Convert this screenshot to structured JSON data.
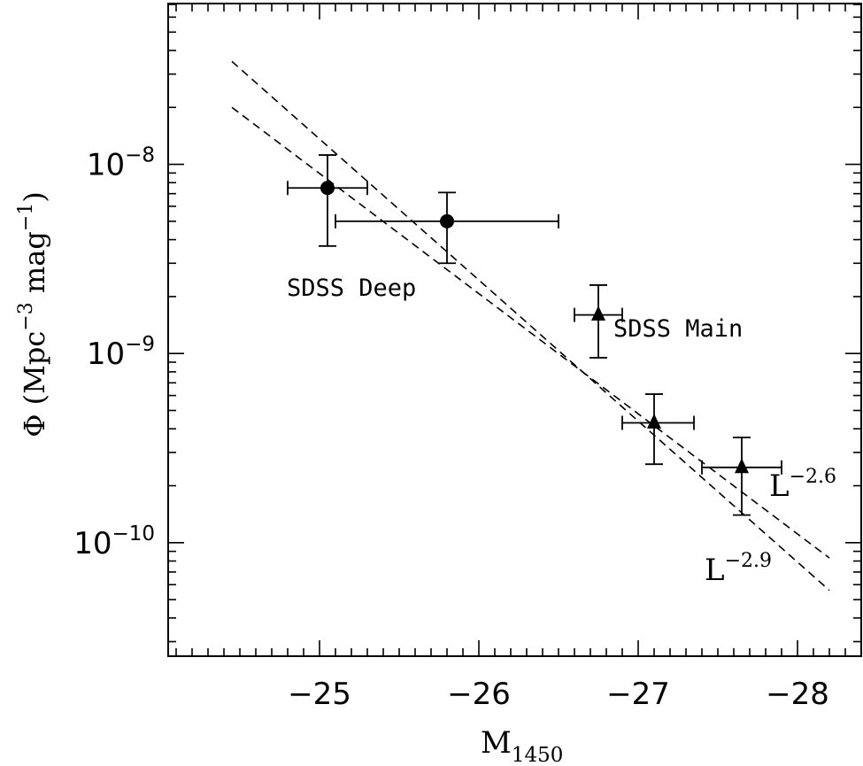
{
  "chart_data": {
    "type": "scatter",
    "xlabel": "M",
    "xlabel_sub": "1450",
    "ylabel": "Φ (Mpc⁻³ mag⁻¹)",
    "ylabel_parts": {
      "main": "Φ (Mpc",
      "exp1": "−3",
      "mid": " mag",
      "exp2": "−1",
      "end": ")"
    },
    "x_axis": {
      "reversed": true,
      "xlim": [
        -24.05,
        -28.4
      ],
      "ticks": [
        -25,
        -26,
        -27,
        -28
      ],
      "tick_labels": [
        "−25",
        "−26",
        "−27",
        "−28"
      ]
    },
    "y_axis": {
      "log": true,
      "ylim_log10": [
        -10.6,
        -7.15
      ],
      "ticks_log10": [
        -8,
        -9,
        -10
      ],
      "tick_labels": [
        {
          "base": "10",
          "exp": "−8"
        },
        {
          "base": "10",
          "exp": "−9"
        },
        {
          "base": "10",
          "exp": "−10"
        }
      ]
    },
    "series": [
      {
        "name": "SDSS Deep",
        "marker": "circle",
        "points": [
          {
            "x": -25.05,
            "y": 7.5e-09,
            "xerr": [
              0.25,
              0.25
            ],
            "yerr_low": 3.7e-09,
            "yerr_high": 1.12e-08
          },
          {
            "x": -25.8,
            "y": 5e-09,
            "xerr": [
              0.7,
              0.7
            ],
            "yerr_low": 3e-09,
            "yerr_high": 7.1e-09
          }
        ]
      },
      {
        "name": "SDSS Main",
        "marker": "triangle",
        "points": [
          {
            "x": -26.75,
            "y": 1.6e-09,
            "xerr": [
              0.15,
              0.15
            ],
            "yerr_low": 9.5e-10,
            "yerr_high": 2.3e-09
          },
          {
            "x": -27.1,
            "y": 4.3e-10,
            "xerr": [
              0.2,
              0.25
            ],
            "yerr_low": 2.6e-10,
            "yerr_high": 6.1e-10
          },
          {
            "x": -27.65,
            "y": 2.5e-10,
            "xerr": [
              0.25,
              0.25
            ],
            "yerr_low": 1.4e-10,
            "yerr_high": 3.6e-10
          }
        ]
      }
    ],
    "fits": [
      {
        "label_base": "L",
        "label_exp": "−2.6",
        "style": "dashed",
        "x": [
          -24.45,
          -28.2
        ],
        "y": [
          2e-08,
          8.3e-11
        ]
      },
      {
        "label_base": "L",
        "label_exp": "−2.9",
        "style": "dashed",
        "x": [
          -24.45,
          -28.2
        ],
        "y": [
          3.5e-08,
          5.6e-11
        ]
      }
    ],
    "annotations": [
      "SDSS Deep",
      "SDSS Main"
    ]
  }
}
